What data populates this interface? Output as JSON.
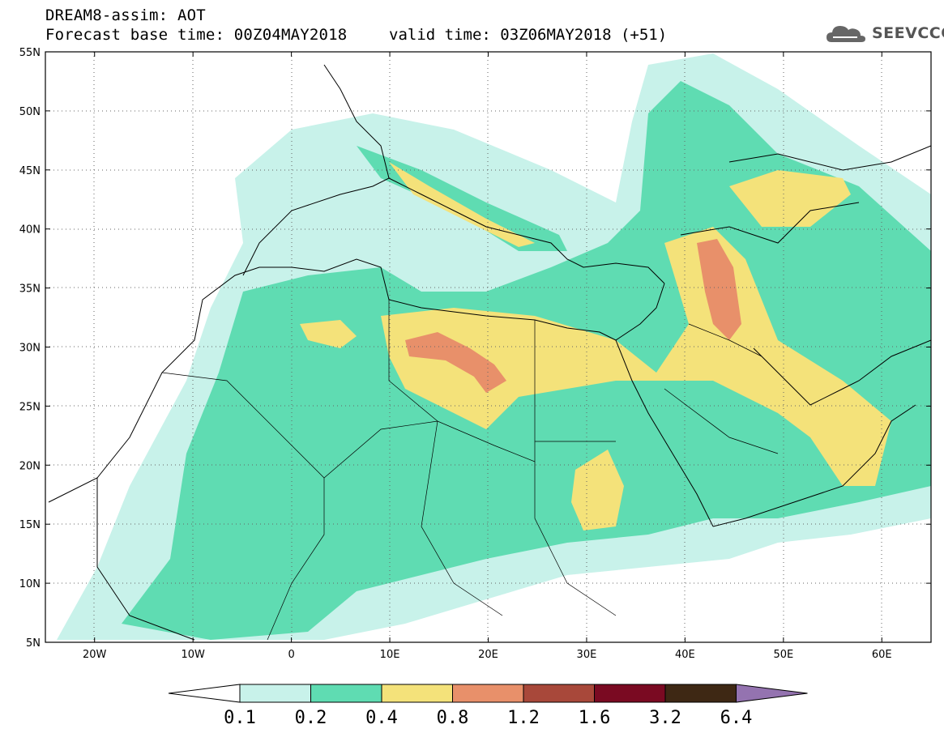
{
  "title": {
    "line1": "DREAM8-assim: AOT",
    "line2_left": "Forecast base time: 00Z04MAY2018",
    "line2_right": "valid time: 03Z06MAY2018 (+51)"
  },
  "logo": {
    "text": "SEEVCCC",
    "icon": "cloud-icon"
  },
  "map_data": {
    "lat_labels": [
      "55N",
      "50N",
      "45N",
      "40N",
      "35N",
      "30N",
      "25N",
      "20N",
      "15N",
      "10N",
      "5N"
    ],
    "lon_labels": [
      "20W",
      "10W",
      "0",
      "10E",
      "20E",
      "30E",
      "40E",
      "50E",
      "60E"
    ],
    "lat_range": [
      5,
      55
    ],
    "lon_range": [
      -25,
      65
    ],
    "grid": "dotted"
  },
  "colorbar": {
    "levels": [
      "0.1",
      "0.2",
      "0.4",
      "0.8",
      "1.2",
      "1.6",
      "3.2",
      "6.4"
    ],
    "colors": [
      "#c8f2ea",
      "#5fdcb2",
      "#f4e27a",
      "#e8906a",
      "#a8483a",
      "#7a0a22",
      "#3e2814",
      "#9473b0"
    ],
    "below_color": "#ffffff"
  }
}
